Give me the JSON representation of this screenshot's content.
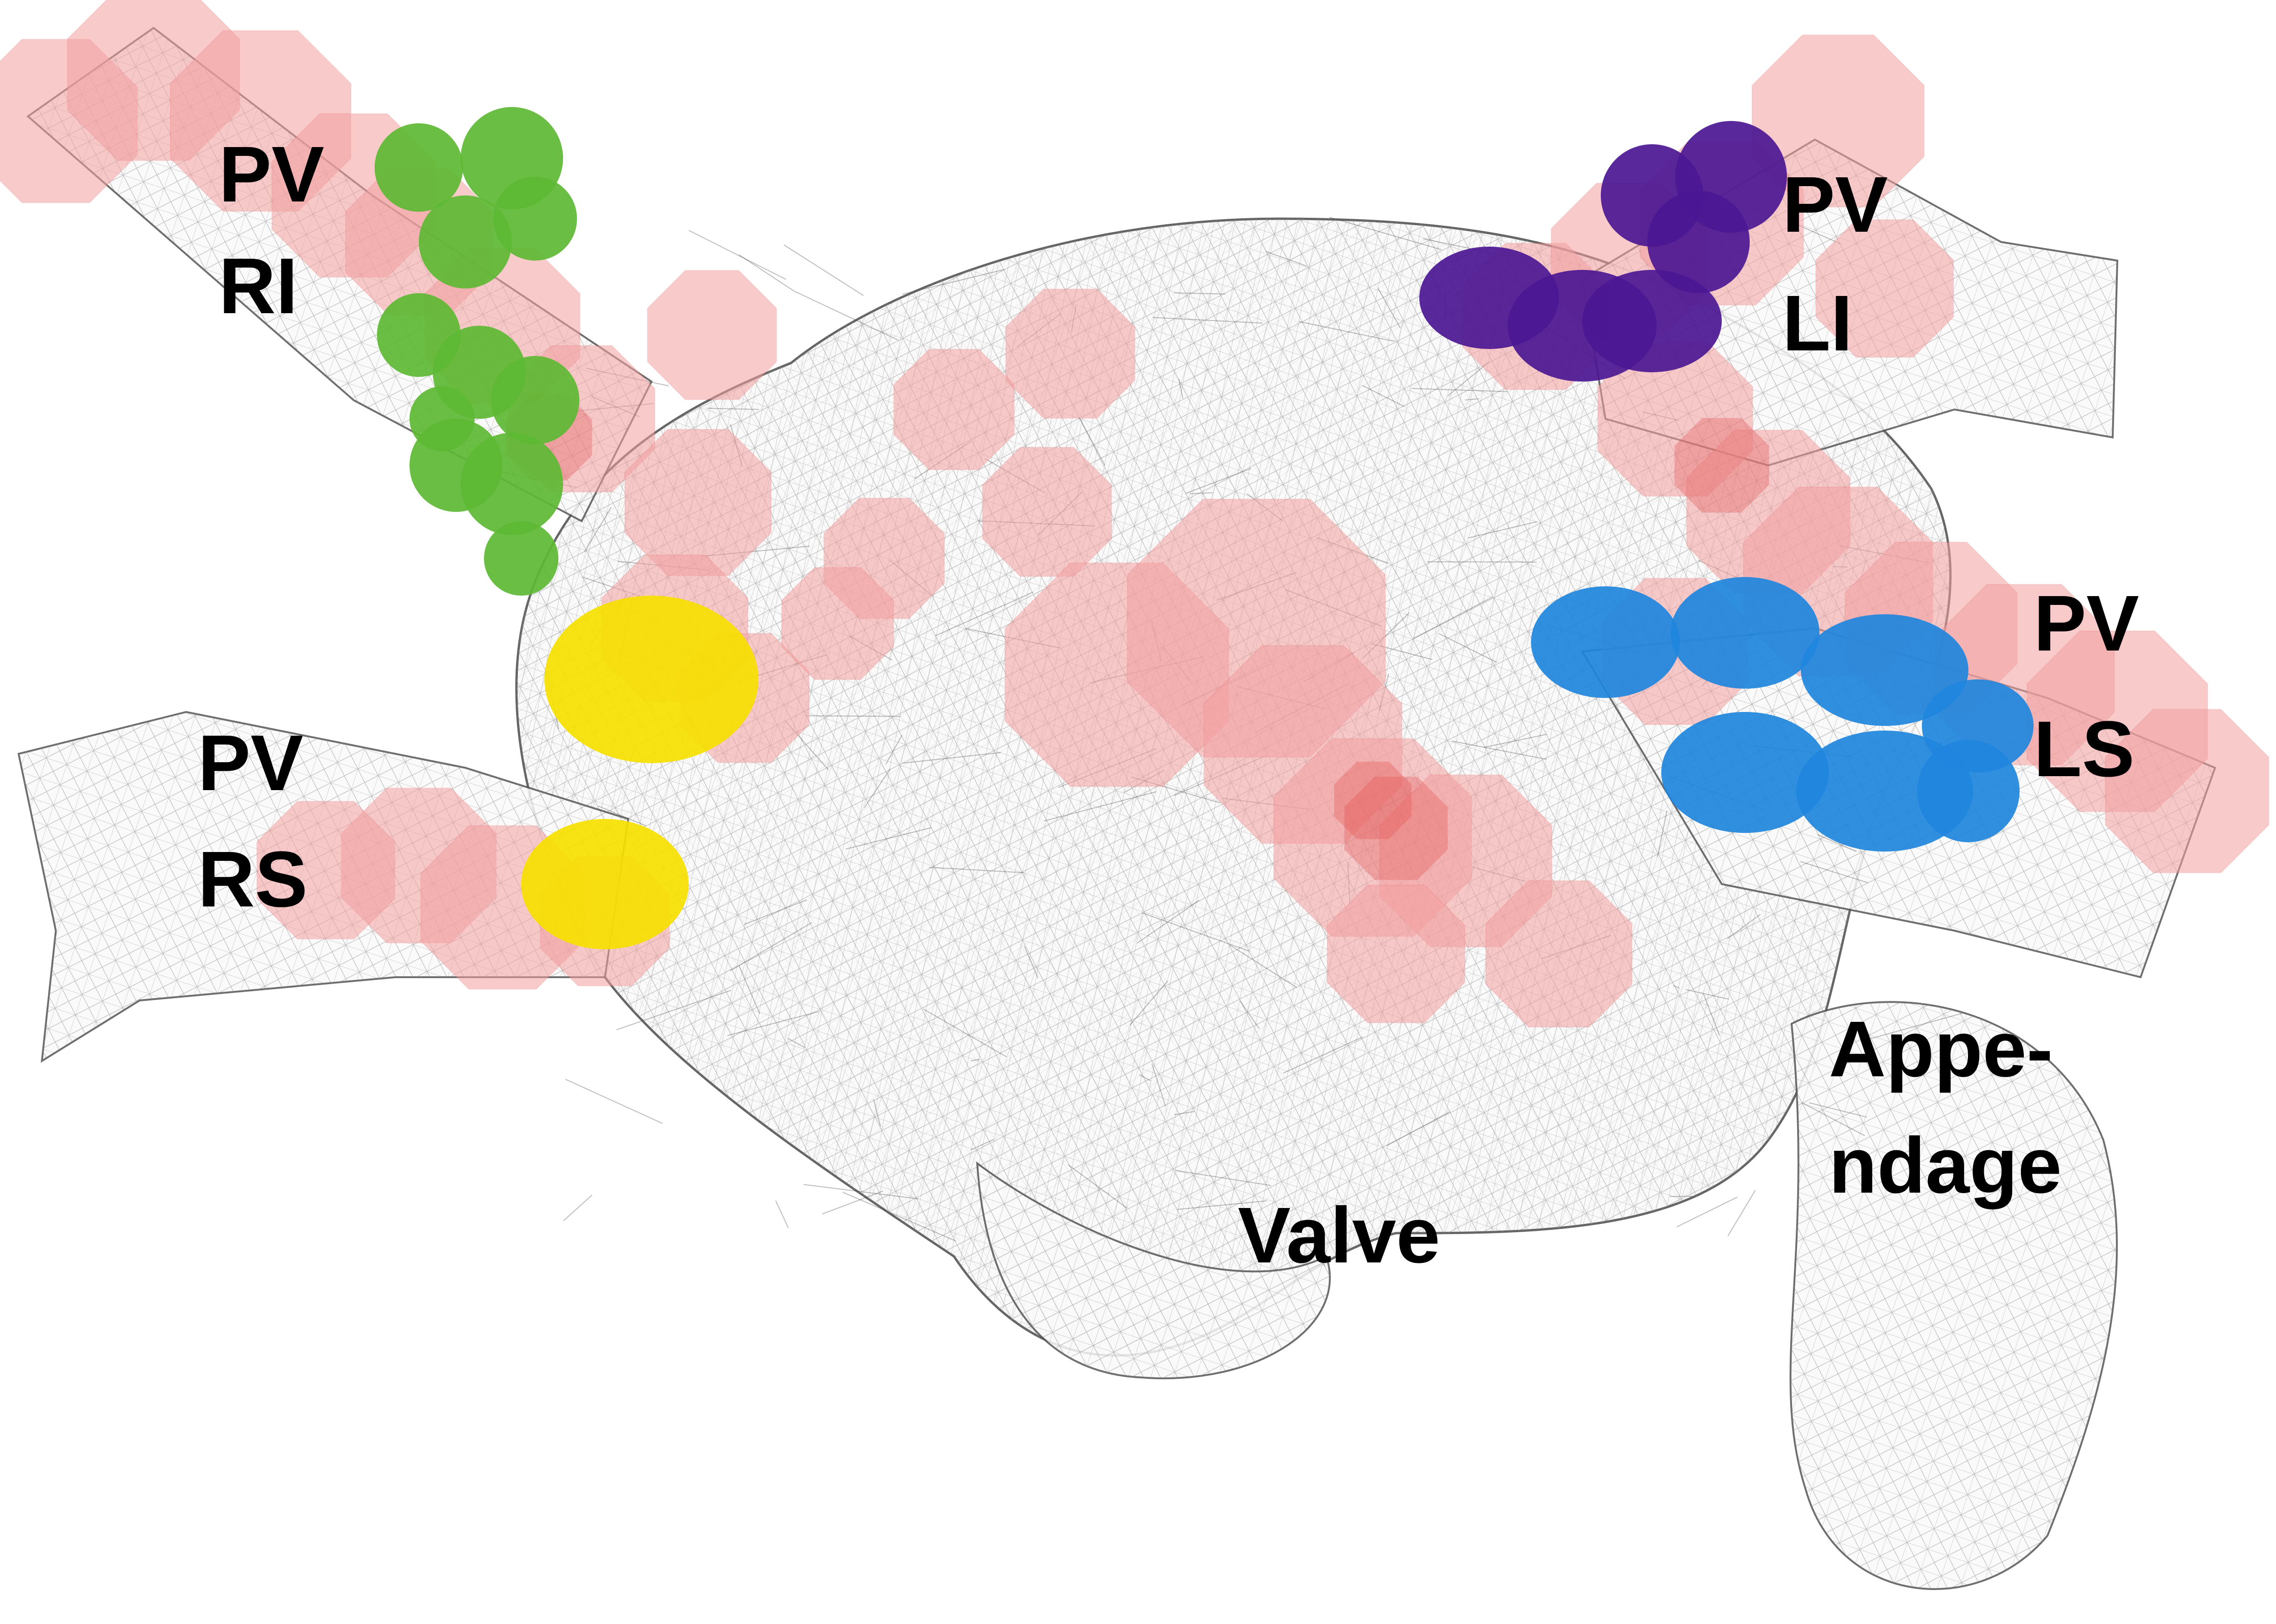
{
  "labels": {
    "pv_ri": {
      "line1": "PV",
      "line2": "RI"
    },
    "pv_li": {
      "line1": "PV",
      "line2": "LI"
    },
    "pv_rs": {
      "line1": "PV",
      "line2": "RS"
    },
    "pv_ls": {
      "line1": "PV",
      "line2": "LS"
    },
    "appendage": {
      "line1": "Appe-",
      "line2": "ndage"
    },
    "valve": "Valve"
  },
  "colors": {
    "mesh_stroke": "#555555",
    "mesh_fill": "#fafafa",
    "activation_red": "#f4a0a0",
    "activation_red_dark": "#e25555",
    "pv_ri_marker": "#5db833",
    "pv_li_marker": "#4b1792",
    "pv_rs_marker": "#f6df00",
    "pv_ls_marker": "#1f86dd"
  },
  "icons": {
    "mesh": "atrium-wireframe-mesh",
    "activation": "red-octagon-patches",
    "markers": "colored-ablation-spheres"
  }
}
